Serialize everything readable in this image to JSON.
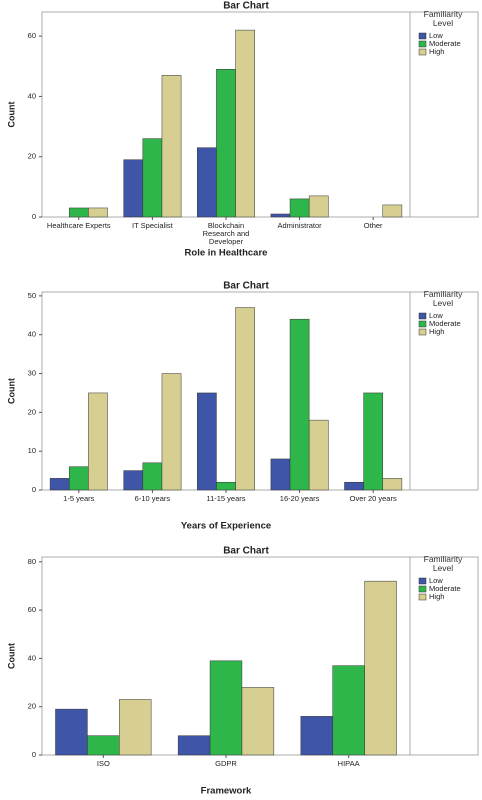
{
  "chart_data": [
    {
      "type": "bar",
      "title": "Bar Chart",
      "legend_title": "Familiarity Level",
      "x_label": "Role in Healthcare",
      "y_label": "Count",
      "categories": [
        "Healthcare Experts",
        "IT Specialist",
        "Blockchain Research and Developer",
        "Administrator",
        "Other"
      ],
      "series": [
        {
          "name": "Low",
          "color": "#3f55a8",
          "values": [
            0,
            19,
            23,
            1,
            0
          ]
        },
        {
          "name": "Moderate",
          "color": "#2fb64a",
          "values": [
            3,
            26,
            49,
            6,
            0
          ]
        },
        {
          "name": "High",
          "color": "#d6cf91",
          "values": [
            3,
            47,
            62,
            7,
            4
          ]
        }
      ],
      "ylim": [
        0,
        68
      ],
      "yticks": [
        0,
        20,
        40,
        60
      ]
    },
    {
      "type": "bar",
      "title": "Bar Chart",
      "legend_title": "Familiarity Level",
      "x_label": "Years of Experience",
      "y_label": "Count",
      "categories": [
        "1-5 years",
        "6-10 years",
        "11-15 years",
        "16-20 years",
        "Over 20 years"
      ],
      "series": [
        {
          "name": "Low",
          "color": "#3f55a8",
          "values": [
            3,
            5,
            25,
            8,
            2
          ]
        },
        {
          "name": "Moderate",
          "color": "#2fb64a",
          "values": [
            6,
            7,
            2,
            44,
            25
          ]
        },
        {
          "name": "High",
          "color": "#d6cf91",
          "values": [
            25,
            30,
            47,
            18,
            3
          ]
        }
      ],
      "ylim": [
        0,
        51
      ],
      "yticks": [
        0,
        10,
        20,
        30,
        40,
        50
      ]
    },
    {
      "type": "bar",
      "title": "Bar Chart",
      "legend_title": "Familiarity Level",
      "x_label": "Framework",
      "y_label": "Count",
      "categories": [
        "ISO",
        "GDPR",
        "HIPAA"
      ],
      "series": [
        {
          "name": "Low",
          "color": "#3f55a8",
          "values": [
            19,
            8,
            16
          ]
        },
        {
          "name": "Moderate",
          "color": "#2fb64a",
          "values": [
            8,
            39,
            37
          ]
        },
        {
          "name": "High",
          "color": "#d6cf91",
          "values": [
            23,
            28,
            72
          ]
        }
      ],
      "ylim": [
        0,
        82
      ],
      "yticks": [
        0,
        20,
        40,
        60,
        80
      ]
    }
  ]
}
